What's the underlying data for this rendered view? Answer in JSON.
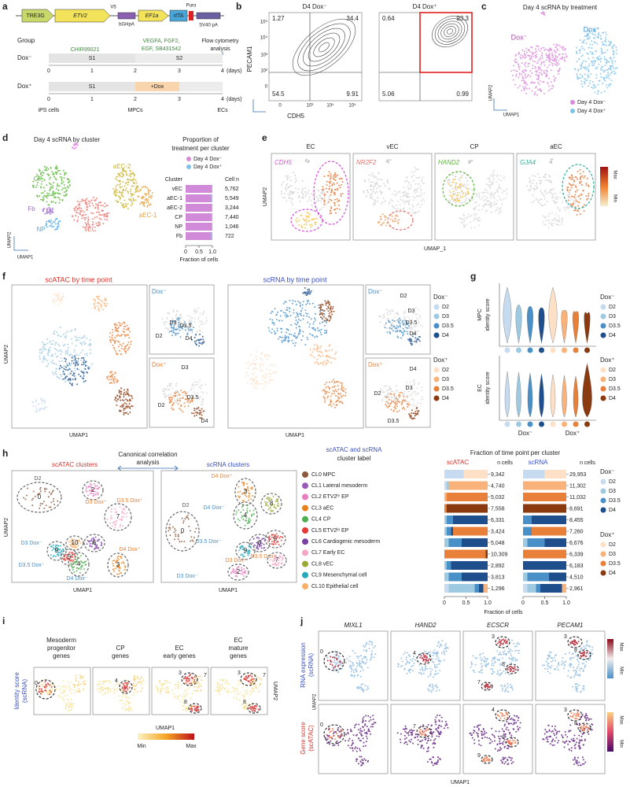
{
  "a": {
    "label": "a",
    "construct": [
      "TRE3G",
      "ETV2",
      "V5",
      "bGHpA",
      "EF1a",
      "rtTA",
      "Puro",
      "SV40 pA"
    ],
    "group": "Group",
    "chir": "CHIR99021",
    "growth": [
      "VEGFA, FGF2,",
      "EGF, SB431542"
    ],
    "flow": [
      "Flow cytometry",
      "analysis"
    ],
    "rows": [
      {
        "name": "Dox⁻",
        "s1": "S1",
        "s2": "S2"
      },
      {
        "name": "Dox⁺",
        "s1": "S1",
        "s2": "+Dox"
      }
    ],
    "days": [
      "0",
      "1",
      "2",
      "3",
      "4"
    ],
    "days_unit": "(days)",
    "stages": [
      "iPS cells",
      "MPCs",
      "ECs"
    ]
  },
  "b": {
    "label": "b",
    "titles": [
      "D4 Dox⁻",
      "D4 Dox⁺"
    ],
    "quadrants": [
      [
        "1.27",
        "34.4",
        "54.5",
        "9.91"
      ],
      [
        "0.64",
        "93.3",
        "5.06",
        "0.99"
      ]
    ],
    "ylabel": "PECAM1",
    "xlabel": "CDH5",
    "yticks": [
      "10⁵",
      "10⁴",
      "10³",
      "10²",
      "0"
    ],
    "xticks": [
      "0",
      "10³",
      "10⁴",
      "10⁵"
    ]
  },
  "c": {
    "label": "c",
    "title": "Day 4 scRNA by treatment",
    "groups": [
      "Dox⁻",
      "Dox⁺"
    ],
    "legend": [
      "Day 4 Dox⁻",
      "Day 4 Dox⁺"
    ],
    "colors": [
      "#d98ad9",
      "#7ec3ec"
    ],
    "xlabel": "UMAP1",
    "ylabel": "UMAP2"
  },
  "d": {
    "label": "d",
    "title": "Day 4 scRNA by cluster",
    "umap_labels": [
      "CP",
      "aEC-2",
      "aEC-1",
      "Fb",
      "NP",
      "vEC"
    ],
    "umap_colors": [
      "#5cb83a",
      "#c9b32c",
      "#e6a13a",
      "#a06bd0",
      "#4aa6e0",
      "#e8706a"
    ],
    "xlabel": "UMAP1",
    "ylabel": "UMAP2",
    "prop_title": [
      "Proportion of",
      "treatment per cluster"
    ],
    "cluster_head": "Cluster",
    "n_head": "Cell n",
    "rows": [
      {
        "cluster": "vEC",
        "n": "5,762"
      },
      {
        "cluster": "aEC-1",
        "n": "5,549"
      },
      {
        "cluster": "aEC-2",
        "n": "3,244"
      },
      {
        "cluster": "CP",
        "n": "7,440"
      },
      {
        "cluster": "NP",
        "n": "1,046"
      },
      {
        "cluster": "Fb",
        "n": "722"
      }
    ],
    "dox_minus_fraction": [
      0.97,
      0.96,
      0.97,
      0.98,
      0.97,
      0.96
    ],
    "xlim": [
      0,
      1
    ],
    "xticks": [
      {
        "value": 0,
        "label": "0"
      },
      {
        "value": 0.5,
        "label": "0.5"
      },
      {
        "value": 1,
        "label": "1.0"
      }
    ],
    "xaxis": "Fraction of cells"
  },
  "e": {
    "label": "e",
    "titles": [
      "EC",
      "vEC",
      "CP",
      "aEC"
    ],
    "genes": [
      "CDH5",
      "NR2F2",
      "HAND2",
      "GJA4"
    ],
    "gene_colors": [
      "#d94fd9",
      "#e8706a",
      "#5cb83a",
      "#2bb09a"
    ],
    "xlabel": "UMAP_1",
    "ylabel": "UMAP2",
    "scale": [
      "Max",
      "Min"
    ]
  },
  "f": {
    "label": "f",
    "scatac_title": "scATAC by time point",
    "scrna_title": "scRNA by time point",
    "dox": [
      "Dox⁻",
      "Dox⁺"
    ],
    "time": [
      "D2",
      "D3",
      "D3.5",
      "D4"
    ],
    "minus_colors": [
      "#c6dbef",
      "#9ecae1",
      "#4a90c8",
      "#1f4e8c"
    ],
    "plus_colors": [
      "#fde0c5",
      "#f9b37a",
      "#e8803a",
      "#8b3a0f"
    ],
    "xlabel": "UMAP1",
    "ylabel": "UMAP2"
  },
  "g": {
    "label": "g",
    "ylabels": [
      [
        "MPC",
        "identity score"
      ],
      [
        "EC",
        "identity score"
      ]
    ]
  },
  "h": {
    "label": "h",
    "cca": [
      "Canonical correlation",
      "analysis"
    ],
    "atac_title": "scATAC clusters",
    "rna_title": "scRNA clusters",
    "label_head": [
      "scATAC and scRNA",
      "cluster label"
    ],
    "clusters": [
      "CL0 MPC",
      "CL1 Lateral mesoderm",
      "CL2 ETV2ʰⁱ EP",
      "CL3 aEC",
      "CL4 CP",
      "CL5 ETV2ˡᵒ EP",
      "CL6 Cardiogenic mesoderm",
      "CL7 Early EC",
      "CL8 vEC",
      "CL9 Mesenchymal cell",
      "CL10 Epithelial cell"
    ],
    "colors": [
      "#8b5a3c",
      "#9b59b6",
      "#e67ec0",
      "#e8801a",
      "#4caf50",
      "#e53935",
      "#7b3fa0",
      "#f4a6c6",
      "#9aa832",
      "#26a9b8",
      "#f6b26b"
    ],
    "atac_umap_labels": [
      "D2",
      "D3 Dox⁺",
      "D3.5 Dox⁺",
      "D3 Dox⁻",
      "D3.5 Dox⁻",
      "D4 Dox⁻",
      "D4 Dox⁺"
    ],
    "rna_umap_labels": [
      "D4 Dox⁺",
      "D4 Dox⁻",
      "D2",
      "D3.5 Dox⁻",
      "D3.5 Dox⁺",
      "D3 Dox⁺",
      "D3 Dox⁻"
    ],
    "atac_numbers": [
      "0",
      "2",
      "7",
      "3",
      "10",
      "9",
      "5",
      "6",
      "4"
    ],
    "rna_numbers": [
      "3",
      "8",
      "4",
      "0",
      "6",
      "5",
      "9",
      "7",
      "2"
    ],
    "frac_title": "Fraction of time point per cluster",
    "atac_head": "scATAC",
    "rna_head": "scRNA",
    "n_head": "n cells",
    "atac_n": [
      "9,342",
      "4,740",
      "5,032",
      "7,558",
      "6,331",
      "3,424",
      "5,048",
      "10,309",
      "2,892",
      "3,813",
      "1,296"
    ],
    "rna_n": [
      "29,953",
      "11,302",
      "11,032",
      "8,691",
      "8,455",
      "7,260",
      "6,676",
      "6,339",
      "6,183",
      "4,510",
      "2,961"
    ],
    "atac_segments": [
      [
        0.45,
        0,
        0,
        0,
        0.55,
        0,
        0,
        0
      ],
      [
        0.05,
        0.05,
        0,
        0,
        0,
        0.9,
        0,
        0
      ],
      [
        0,
        0,
        0,
        0,
        0,
        0.05,
        0.95,
        0
      ],
      [
        0,
        0,
        0,
        0,
        0,
        0,
        0.05,
        0.95
      ],
      [
        0,
        0.05,
        0.15,
        0.8,
        0,
        0,
        0,
        0
      ],
      [
        0,
        0.05,
        0.1,
        0.05,
        0,
        0,
        0.8,
        0
      ],
      [
        0,
        0.1,
        0.3,
        0.6,
        0,
        0,
        0,
        0
      ],
      [
        0,
        0,
        0,
        0,
        0,
        0,
        0.95,
        0.05
      ],
      [
        0,
        0.05,
        0.1,
        0.85,
        0,
        0,
        0,
        0
      ],
      [
        0,
        0.1,
        0.3,
        0.6,
        0,
        0,
        0,
        0
      ],
      [
        0.1,
        0.6,
        0.1,
        0.1,
        0,
        0.1,
        0,
        0
      ]
    ],
    "rna_segments": [
      [
        0.5,
        0,
        0,
        0,
        0.5,
        0,
        0,
        0
      ],
      [
        0,
        0,
        0,
        0,
        0,
        1,
        0,
        0
      ],
      [
        0,
        0,
        0,
        0,
        0,
        0,
        1,
        0
      ],
      [
        0,
        0,
        0,
        0,
        0,
        0,
        0,
        1
      ],
      [
        0,
        0,
        0.2,
        0.8,
        0,
        0,
        0,
        0
      ],
      [
        0,
        0,
        0.2,
        0,
        0,
        0,
        0.8,
        0
      ],
      [
        0,
        0.1,
        0.4,
        0.5,
        0,
        0,
        0,
        0
      ],
      [
        0,
        0,
        0,
        0,
        0,
        0,
        1,
        0
      ],
      [
        0,
        0,
        0,
        1,
        0,
        0,
        0,
        0
      ],
      [
        0,
        0.1,
        0.5,
        0.4,
        0,
        0,
        0,
        0
      ],
      [
        0.1,
        0.2,
        0.1,
        0.5,
        0,
        0.1,
        0,
        0
      ]
    ],
    "xlim": [
      0,
      1
    ],
    "xticks": [
      {
        "value": 0,
        "label": "0"
      },
      {
        "value": 0.5,
        "label": "0.5"
      },
      {
        "value": 1,
        "label": "1.0"
      }
    ],
    "xaxis": "Fraction of cells",
    "xlabel": "UMAP1",
    "ylabel": "UMAP2"
  },
  "i": {
    "label": "i",
    "titles": [
      [
        "Mesoderm",
        "progenitor",
        "genes"
      ],
      [
        "CP",
        "genes"
      ],
      [
        "EC",
        "early genes"
      ],
      [
        "EC",
        "mature",
        "genes"
      ]
    ],
    "numbers": [
      "0",
      "4",
      "3",
      "8",
      "7",
      "3",
      "8",
      "7"
    ],
    "ylabel": [
      "Identity score",
      "(scRNA)"
    ],
    "xlabel": "UMAP1",
    "side_label": "UMAP2",
    "scale": [
      "Min",
      "Max"
    ]
  },
  "j": {
    "label": "j",
    "genes": [
      "MIXL1",
      "HAND2",
      "ECSCR",
      "PECAM1"
    ],
    "row_labels": [
      [
        "RNA expression",
        "(scRNA)"
      ],
      [
        "Gene score",
        "(scATAC)"
      ]
    ],
    "numbers": [
      "0",
      "4",
      "3",
      "8",
      "7",
      "3",
      "8",
      "0",
      "7",
      "4",
      "8",
      "9",
      "3",
      "8"
    ],
    "xlabel": "UMAP1",
    "ylabel": "UMAP2",
    "scale": [
      "Max",
      "Min"
    ]
  }
}
